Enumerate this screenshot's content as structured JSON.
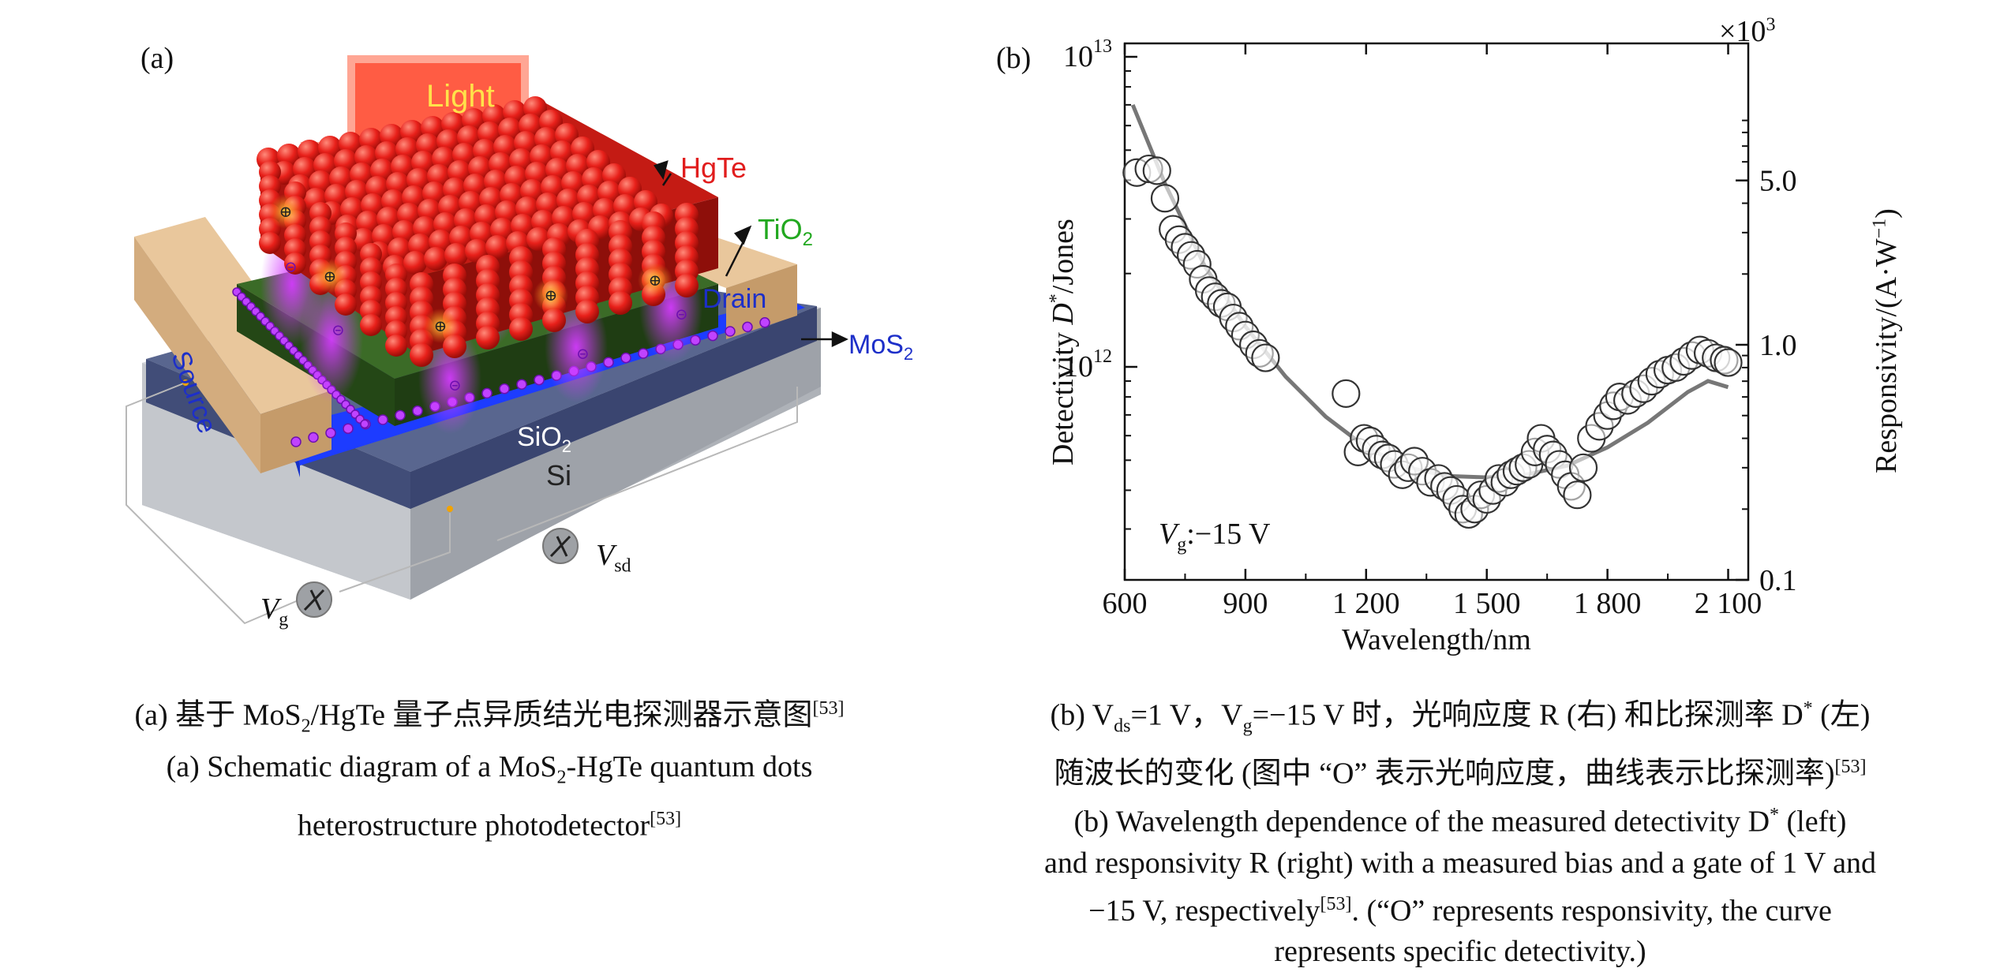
{
  "panel_a": {
    "label": "(a)",
    "light": "Light",
    "hgte": "HgTe",
    "tio2": "TiO",
    "tio2_sub": "2",
    "drain": "Drain",
    "source": "Source",
    "mos2": "MoS",
    "mos2_sub": "2",
    "sio2": "SiO",
    "sio2_sub": "2",
    "si": "Si",
    "vsd": "V",
    "vsd_sub": "sd",
    "vg": "V",
    "vg_sub": "g",
    "caption_cn_pre": "(a) 基于 MoS",
    "caption_cn_sub": "2",
    "caption_cn_post": "/HgTe 量子点异质结光电探测器示意图",
    "caption_cn_ref": "[53]",
    "caption_en1_pre": "(a) Schematic diagram of a MoS",
    "caption_en1_sub": "2",
    "caption_en1_post": "-HgTe quantum dots",
    "caption_en2": "heterostructure photodetector",
    "caption_en2_ref": "[53]"
  },
  "panel_b": {
    "label": "(b)",
    "multiplier": "×10",
    "multiplier_sup": "3",
    "annotation_v": "V",
    "annotation_sub": "g",
    "annotation_val": ":−15 V",
    "ylabel_left_pre": "Detectivity ",
    "ylabel_left_d": "D",
    "ylabel_left_sup": "*",
    "ylabel_left_post": "/Jones",
    "ylabel_right": "Responsivity/(A·W",
    "ylabel_right_sup": "−1",
    "ylabel_right_close": ")",
    "caption_cn1": "(b) V",
    "caption_cn1_sub1": "ds",
    "caption_cn1_mid": "=1 V，V",
    "caption_cn1_sub2": "g",
    "caption_cn1_post": "=−15 V 时，光响应度 R (右) 和比探测率 D",
    "caption_cn1_sup": "*",
    "caption_cn1_end": " (左)",
    "caption_cn2": "随波长的变化 (图中 “O” 表示光响应度，曲线表示比探测率)",
    "caption_cn2_ref": "[53]",
    "caption_en1": "(b) Wavelength dependence of the measured detectivity D",
    "caption_en1_sup": "*",
    "caption_en1_post": " (left)",
    "caption_en2": "and responsivity R (right) with a measured bias and a gate of 1 V and",
    "caption_en3_pre": "−15 V, respectively",
    "caption_en3_ref": "[53]",
    "caption_en3_post": ". (“O” represents responsivity, the curve",
    "caption_en4": "represents specific detectivity.)"
  },
  "chart_data": {
    "type": "scatter",
    "xlabel": "Wavelength/nm",
    "xlim": [
      600,
      2150
    ],
    "x_ticks": [
      600,
      900,
      1200,
      1500,
      1800,
      2100
    ],
    "x_tick_labels": [
      "600",
      "900",
      "1 200",
      "1 500",
      "1 800",
      "2 100"
    ],
    "y_left": {
      "label": "Detectivity D*/Jones",
      "scale": "log",
      "ticks": [
        "10^13",
        "10^12"
      ]
    },
    "y_right": {
      "label": "Responsivity/(A·W−1)",
      "multiplier": "×10^3",
      "tick_labels": [
        "5.0",
        "1.0",
        "0.1"
      ]
    },
    "series": [
      {
        "name": "Responsivity (circles)",
        "unit": "A/W (×10^3)",
        "points": [
          [
            630,
            5.4
          ],
          [
            660,
            5.6
          ],
          [
            680,
            5.5
          ],
          [
            700,
            4.2
          ],
          [
            720,
            3.1
          ],
          [
            735,
            2.8
          ],
          [
            750,
            2.6
          ],
          [
            765,
            2.4
          ],
          [
            780,
            2.2
          ],
          [
            795,
            1.9
          ],
          [
            810,
            1.7
          ],
          [
            825,
            1.6
          ],
          [
            840,
            1.5
          ],
          [
            855,
            1.45
          ],
          [
            870,
            1.3
          ],
          [
            885,
            1.2
          ],
          [
            900,
            1.1
          ],
          [
            920,
            1.0
          ],
          [
            935,
            0.92
          ],
          [
            950,
            0.88
          ],
          [
            1150,
            0.62
          ],
          [
            1180,
            0.35
          ],
          [
            1195,
            0.4
          ],
          [
            1210,
            0.39
          ],
          [
            1225,
            0.36
          ],
          [
            1240,
            0.34
          ],
          [
            1255,
            0.33
          ],
          [
            1270,
            0.31
          ],
          [
            1290,
            0.28
          ],
          [
            1305,
            0.3
          ],
          [
            1320,
            0.32
          ],
          [
            1340,
            0.29
          ],
          [
            1360,
            0.26
          ],
          [
            1380,
            0.27
          ],
          [
            1395,
            0.25
          ],
          [
            1410,
            0.24
          ],
          [
            1425,
            0.22
          ],
          [
            1440,
            0.2
          ],
          [
            1455,
            0.19
          ],
          [
            1470,
            0.2
          ],
          [
            1485,
            0.23
          ],
          [
            1500,
            0.22
          ],
          [
            1515,
            0.24
          ],
          [
            1530,
            0.27
          ],
          [
            1545,
            0.26
          ],
          [
            1560,
            0.28
          ],
          [
            1575,
            0.29
          ],
          [
            1590,
            0.3
          ],
          [
            1605,
            0.31
          ],
          [
            1620,
            0.35
          ],
          [
            1635,
            0.4
          ],
          [
            1650,
            0.36
          ],
          [
            1665,
            0.34
          ],
          [
            1680,
            0.31
          ],
          [
            1695,
            0.28
          ],
          [
            1710,
            0.25
          ],
          [
            1725,
            0.23
          ],
          [
            1740,
            0.3
          ],
          [
            1760,
            0.4
          ],
          [
            1780,
            0.45
          ],
          [
            1800,
            0.5
          ],
          [
            1815,
            0.55
          ],
          [
            1830,
            0.6
          ],
          [
            1850,
            0.58
          ],
          [
            1870,
            0.62
          ],
          [
            1890,
            0.65
          ],
          [
            1910,
            0.7
          ],
          [
            1930,
            0.75
          ],
          [
            1950,
            0.78
          ],
          [
            1970,
            0.8
          ],
          [
            1990,
            0.85
          ],
          [
            2010,
            0.9
          ],
          [
            2030,
            0.95
          ],
          [
            2050,
            0.92
          ],
          [
            2070,
            0.88
          ],
          [
            2090,
            0.86
          ],
          [
            2100,
            0.84
          ]
        ]
      },
      {
        "name": "Specific detectivity (curve)",
        "unit": "Jones",
        "points": [
          [
            620,
            7000000000000.0
          ],
          [
            700,
            3900000000000.0
          ],
          [
            800,
            2100000000000.0
          ],
          [
            900,
            1350000000000.0
          ],
          [
            1000,
            930000000000.0
          ],
          [
            1100,
            690000000000.0
          ],
          [
            1200,
            550000000000.0
          ],
          [
            1300,
            475000000000.0
          ],
          [
            1400,
            445000000000.0
          ],
          [
            1500,
            440000000000.0
          ],
          [
            1600,
            450000000000.0
          ],
          [
            1700,
            480000000000.0
          ],
          [
            1800,
            550000000000.0
          ],
          [
            1900,
            660000000000.0
          ],
          [
            2000,
            830000000000.0
          ],
          [
            2050,
            900000000000.0
          ],
          [
            2100,
            860000000000.0
          ]
        ]
      }
    ]
  }
}
